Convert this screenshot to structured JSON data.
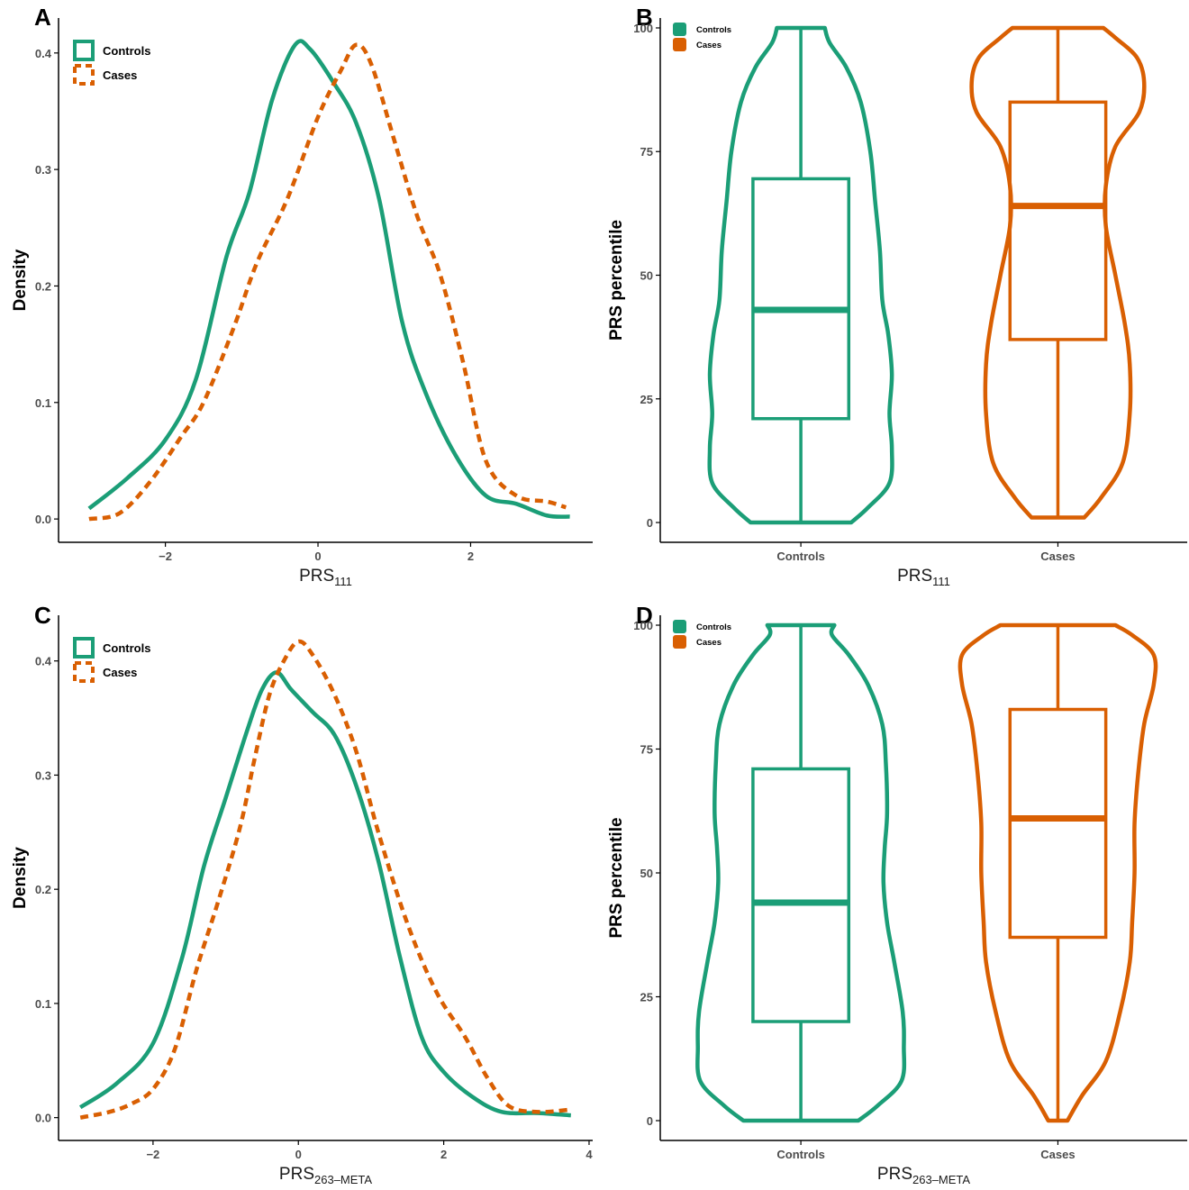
{
  "colors": {
    "controls": "#1b9e77",
    "cases": "#d95f02",
    "axis": "#000000",
    "tick_label": "#4d4d4d"
  },
  "chart_data": [
    {
      "panel": "A",
      "type": "line",
      "xlabel": {
        "main": "PRS",
        "sub": "111"
      },
      "ylabel": "Density",
      "xlim": [
        -3.4,
        3.6
      ],
      "ylim": [
        -0.02,
        0.43
      ],
      "xticks": [
        -2,
        0,
        2
      ],
      "yticks": [
        0.0,
        0.1,
        0.2,
        0.3,
        0.4
      ],
      "ytick_labels": [
        "0.0",
        "0.1",
        "0.2",
        "0.3",
        "0.4"
      ],
      "grid": false,
      "legend_position": "top-left",
      "series": [
        {
          "name": "Controls",
          "color_key": "controls",
          "dash": "solid",
          "points": [
            [
              -3.0,
              0.009
            ],
            [
              -2.5,
              0.035
            ],
            [
              -2.0,
              0.068
            ],
            [
              -1.6,
              0.12
            ],
            [
              -1.2,
              0.225
            ],
            [
              -0.9,
              0.28
            ],
            [
              -0.6,
              0.36
            ],
            [
              -0.3,
              0.407
            ],
            [
              -0.1,
              0.403
            ],
            [
              0.2,
              0.375
            ],
            [
              0.5,
              0.34
            ],
            [
              0.8,
              0.275
            ],
            [
              1.1,
              0.17
            ],
            [
              1.4,
              0.11
            ],
            [
              1.8,
              0.055
            ],
            [
              2.2,
              0.02
            ],
            [
              2.6,
              0.013
            ],
            [
              3.0,
              0.003
            ],
            [
              3.3,
              0.002
            ]
          ]
        },
        {
          "name": "Cases",
          "color_key": "cases",
          "dash": "dashed",
          "points": [
            [
              -3.0,
              0.0
            ],
            [
              -2.6,
              0.005
            ],
            [
              -2.2,
              0.032
            ],
            [
              -1.8,
              0.07
            ],
            [
              -1.5,
              0.1
            ],
            [
              -1.1,
              0.165
            ],
            [
              -0.8,
              0.22
            ],
            [
              -0.4,
              0.275
            ],
            [
              0.0,
              0.345
            ],
            [
              0.3,
              0.385
            ],
            [
              0.5,
              0.407
            ],
            [
              0.7,
              0.39
            ],
            [
              1.0,
              0.325
            ],
            [
              1.3,
              0.26
            ],
            [
              1.6,
              0.21
            ],
            [
              1.9,
              0.135
            ],
            [
              2.2,
              0.05
            ],
            [
              2.6,
              0.02
            ],
            [
              3.0,
              0.015
            ],
            [
              3.25,
              0.01
            ]
          ]
        }
      ]
    },
    {
      "panel": "B",
      "type": "violin-box",
      "categories": [
        "Controls",
        "Cases"
      ],
      "xlabel": {
        "main": "PRS",
        "sub": "111"
      },
      "ylabel": "PRS percentile",
      "ylim": [
        -4,
        102
      ],
      "yticks": [
        0,
        25,
        50,
        75,
        100
      ],
      "grid": false,
      "legend_position": "top-left",
      "series": [
        {
          "name": "Controls",
          "color_key": "controls",
          "violin_halfwidth": [
            [
              0,
              0.21
            ],
            [
              3,
              0.28
            ],
            [
              8,
              0.37
            ],
            [
              15,
              0.38
            ],
            [
              22,
              0.37
            ],
            [
              30,
              0.38
            ],
            [
              38,
              0.365
            ],
            [
              45,
              0.34
            ],
            [
              55,
              0.33
            ],
            [
              65,
              0.31
            ],
            [
              75,
              0.29
            ],
            [
              85,
              0.25
            ],
            [
              92,
              0.19
            ],
            [
              97,
              0.12
            ],
            [
              100,
              0.1
            ]
          ],
          "box": {
            "q1": 21,
            "median": 43,
            "q3": 69.5,
            "whisker_low": 0,
            "whisker_high": 100
          }
        },
        {
          "name": "Cases",
          "color_key": "cases",
          "violin_halfwidth": [
            [
              1,
              0.11
            ],
            [
              5,
              0.18
            ],
            [
              12,
              0.27
            ],
            [
              22,
              0.3
            ],
            [
              32,
              0.3
            ],
            [
              40,
              0.28
            ],
            [
              50,
              0.24
            ],
            [
              60,
              0.2
            ],
            [
              68,
              0.2
            ],
            [
              76,
              0.24
            ],
            [
              83,
              0.34
            ],
            [
              89,
              0.36
            ],
            [
              94,
              0.33
            ],
            [
              98,
              0.24
            ],
            [
              100,
              0.19
            ]
          ],
          "box": {
            "q1": 37,
            "median": 64,
            "q3": 85,
            "whisker_low": 1,
            "whisker_high": 100
          }
        }
      ]
    },
    {
      "panel": "C",
      "type": "line",
      "xlabel": {
        "main": "PRS",
        "sub": "263–META"
      },
      "ylabel": "Density",
      "xlim": [
        -3.3,
        4.05
      ],
      "ylim": [
        -0.02,
        0.44
      ],
      "xticks": [
        -2,
        0,
        2,
        4
      ],
      "yticks": [
        0.0,
        0.1,
        0.2,
        0.3,
        0.4
      ],
      "ytick_labels": [
        "0.0",
        "0.1",
        "0.2",
        "0.3",
        "0.4"
      ],
      "grid": false,
      "legend_position": "top-left",
      "series": [
        {
          "name": "Controls",
          "color_key": "controls",
          "dash": "solid",
          "points": [
            [
              -3.0,
              0.009
            ],
            [
              -2.5,
              0.03
            ],
            [
              -2.0,
              0.065
            ],
            [
              -1.6,
              0.14
            ],
            [
              -1.3,
              0.22
            ],
            [
              -1.0,
              0.28
            ],
            [
              -0.7,
              0.34
            ],
            [
              -0.5,
              0.375
            ],
            [
              -0.3,
              0.39
            ],
            [
              -0.1,
              0.375
            ],
            [
              0.2,
              0.355
            ],
            [
              0.5,
              0.335
            ],
            [
              0.8,
              0.29
            ],
            [
              1.1,
              0.225
            ],
            [
              1.4,
              0.14
            ],
            [
              1.7,
              0.07
            ],
            [
              2.0,
              0.04
            ],
            [
              2.4,
              0.018
            ],
            [
              2.8,
              0.005
            ],
            [
              3.3,
              0.004
            ],
            [
              3.75,
              0.002
            ]
          ]
        },
        {
          "name": "Cases",
          "color_key": "cases",
          "dash": "dashed",
          "points": [
            [
              -3.0,
              0.0
            ],
            [
              -2.6,
              0.005
            ],
            [
              -2.3,
              0.012
            ],
            [
              -2.0,
              0.025
            ],
            [
              -1.7,
              0.06
            ],
            [
              -1.4,
              0.13
            ],
            [
              -1.1,
              0.19
            ],
            [
              -0.8,
              0.255
            ],
            [
              -0.6,
              0.315
            ],
            [
              -0.4,
              0.37
            ],
            [
              -0.2,
              0.4
            ],
            [
              0.0,
              0.417
            ],
            [
              0.2,
              0.405
            ],
            [
              0.5,
              0.37
            ],
            [
              0.8,
              0.32
            ],
            [
              1.1,
              0.25
            ],
            [
              1.5,
              0.17
            ],
            [
              1.9,
              0.11
            ],
            [
              2.3,
              0.07
            ],
            [
              2.6,
              0.035
            ],
            [
              2.9,
              0.01
            ],
            [
              3.3,
              0.005
            ],
            [
              3.75,
              0.007
            ]
          ]
        }
      ]
    },
    {
      "panel": "D",
      "type": "violin-box",
      "categories": [
        "Controls",
        "Cases"
      ],
      "xlabel": {
        "main": "PRS",
        "sub": "263–META"
      },
      "ylabel": "PRS percentile",
      "ylim": [
        -4,
        102
      ],
      "yticks": [
        0,
        25,
        50,
        75,
        100
      ],
      "grid": false,
      "legend_position": "top-left",
      "series": [
        {
          "name": "Controls",
          "color_key": "controls",
          "violin_halfwidth": [
            [
              0,
              0.24
            ],
            [
              3,
              0.32
            ],
            [
              8,
              0.42
            ],
            [
              15,
              0.43
            ],
            [
              22,
              0.425
            ],
            [
              32,
              0.39
            ],
            [
              40,
              0.36
            ],
            [
              48,
              0.345
            ],
            [
              55,
              0.35
            ],
            [
              62,
              0.36
            ],
            [
              72,
              0.355
            ],
            [
              80,
              0.34
            ],
            [
              88,
              0.28
            ],
            [
              94,
              0.2
            ],
            [
              98,
              0.13
            ],
            [
              100,
              0.14
            ]
          ],
          "box": {
            "q1": 20,
            "median": 44,
            "q3": 71,
            "whisker_low": 0,
            "whisker_high": 100
          }
        },
        {
          "name": "Cases",
          "color_key": "cases",
          "violin_halfwidth": [
            [
              0,
              0.04
            ],
            [
              5,
              0.1
            ],
            [
              12,
              0.2
            ],
            [
              22,
              0.26
            ],
            [
              32,
              0.3
            ],
            [
              40,
              0.31
            ],
            [
              50,
              0.32
            ],
            [
              60,
              0.32
            ],
            [
              70,
              0.335
            ],
            [
              80,
              0.36
            ],
            [
              88,
              0.4
            ],
            [
              94,
              0.4
            ],
            [
              98,
              0.31
            ],
            [
              100,
              0.24
            ]
          ],
          "box": {
            "q1": 37,
            "median": 61,
            "q3": 83,
            "whisker_low": 0,
            "whisker_high": 100
          }
        }
      ]
    }
  ]
}
